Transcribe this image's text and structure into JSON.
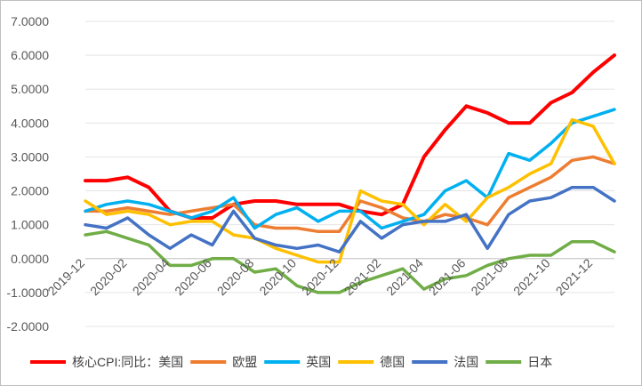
{
  "chart_data": {
    "type": "line",
    "title": "",
    "xlabel": "",
    "ylabel": "",
    "ylim": [
      -2.0,
      7.0
    ],
    "ytick_labels": [
      "-2.0000",
      "-1.0000",
      "0.0000",
      "1.0000",
      "2.0000",
      "3.0000",
      "4.0000",
      "5.0000",
      "6.0000",
      "7.0000"
    ],
    "ytick_values": [
      -2,
      -1,
      0,
      1,
      2,
      3,
      4,
      5,
      6,
      7
    ],
    "xtick_labels": [
      "2019-12",
      "2020-02",
      "2020-04",
      "2020-06",
      "2020-08",
      "2020-10",
      "2020-12",
      "2021-02",
      "2021-04",
      "2021-06",
      "2021-08",
      "2021-10",
      "2021-12"
    ],
    "xtick_indices": [
      0,
      2,
      4,
      6,
      8,
      10,
      12,
      14,
      16,
      18,
      20,
      22,
      24
    ],
    "categories": [
      "2019-12",
      "2020-01",
      "2020-02",
      "2020-03",
      "2020-04",
      "2020-05",
      "2020-06",
      "2020-07",
      "2020-08",
      "2020-09",
      "2020-10",
      "2020-11",
      "2020-12",
      "2021-01",
      "2021-02",
      "2021-03",
      "2021-04",
      "2021-05",
      "2021-06",
      "2021-07",
      "2021-08",
      "2021-09",
      "2021-10",
      "2021-11",
      "2021-12",
      "2022-01"
    ],
    "legend_position": "bottom",
    "series": [
      {
        "name": "核心CPI:同比：美国",
        "color": "#ff0000",
        "values": [
          2.3,
          2.3,
          2.4,
          2.1,
          1.4,
          1.2,
          1.2,
          1.6,
          1.7,
          1.7,
          1.6,
          1.6,
          1.6,
          1.4,
          1.3,
          1.6,
          3.0,
          3.8,
          4.5,
          4.3,
          4.0,
          4.0,
          4.6,
          4.9,
          5.5,
          6.0
        ]
      },
      {
        "name": "欧盟",
        "color": "#ed7d31",
        "values": [
          1.4,
          1.4,
          1.5,
          1.4,
          1.3,
          1.4,
          1.5,
          1.6,
          1.0,
          0.9,
          0.9,
          0.8,
          0.8,
          1.7,
          1.5,
          1.2,
          1.1,
          1.3,
          1.2,
          1.0,
          1.8,
          2.1,
          2.4,
          2.9,
          3.0,
          2.8
        ]
      },
      {
        "name": "英国",
        "color": "#00b0f0",
        "values": [
          1.4,
          1.6,
          1.7,
          1.6,
          1.4,
          1.2,
          1.4,
          1.8,
          0.9,
          1.3,
          1.5,
          1.1,
          1.4,
          1.4,
          0.9,
          1.1,
          1.3,
          2.0,
          2.3,
          1.8,
          3.1,
          2.9,
          3.4,
          4.0,
          4.2,
          4.4
        ]
      },
      {
        "name": "德国",
        "color": "#ffc000",
        "values": [
          1.7,
          1.3,
          1.4,
          1.3,
          1.0,
          1.1,
          1.1,
          0.7,
          0.6,
          0.3,
          0.1,
          -0.1,
          -0.1,
          2.0,
          1.7,
          1.6,
          1.0,
          1.6,
          1.1,
          1.8,
          2.1,
          2.5,
          2.8,
          4.1,
          3.9,
          2.8
        ]
      },
      {
        "name": "法国",
        "color": "#4472c4",
        "values": [
          1.0,
          0.9,
          1.2,
          0.7,
          0.3,
          0.7,
          0.4,
          1.4,
          0.6,
          0.4,
          0.3,
          0.4,
          0.2,
          1.1,
          0.6,
          1.0,
          1.1,
          1.1,
          1.3,
          0.3,
          1.3,
          1.7,
          1.8,
          2.1,
          2.1,
          1.7
        ]
      },
      {
        "name": "日本",
        "color": "#70ad47",
        "values": [
          0.7,
          0.8,
          0.6,
          0.4,
          -0.2,
          -0.2,
          0.0,
          0.0,
          -0.4,
          -0.3,
          -0.8,
          -1.0,
          -1.0,
          -0.7,
          -0.5,
          -0.3,
          -0.9,
          -0.6,
          -0.5,
          -0.2,
          0.0,
          0.1,
          0.1,
          0.5,
          0.5,
          0.2
        ]
      }
    ]
  }
}
